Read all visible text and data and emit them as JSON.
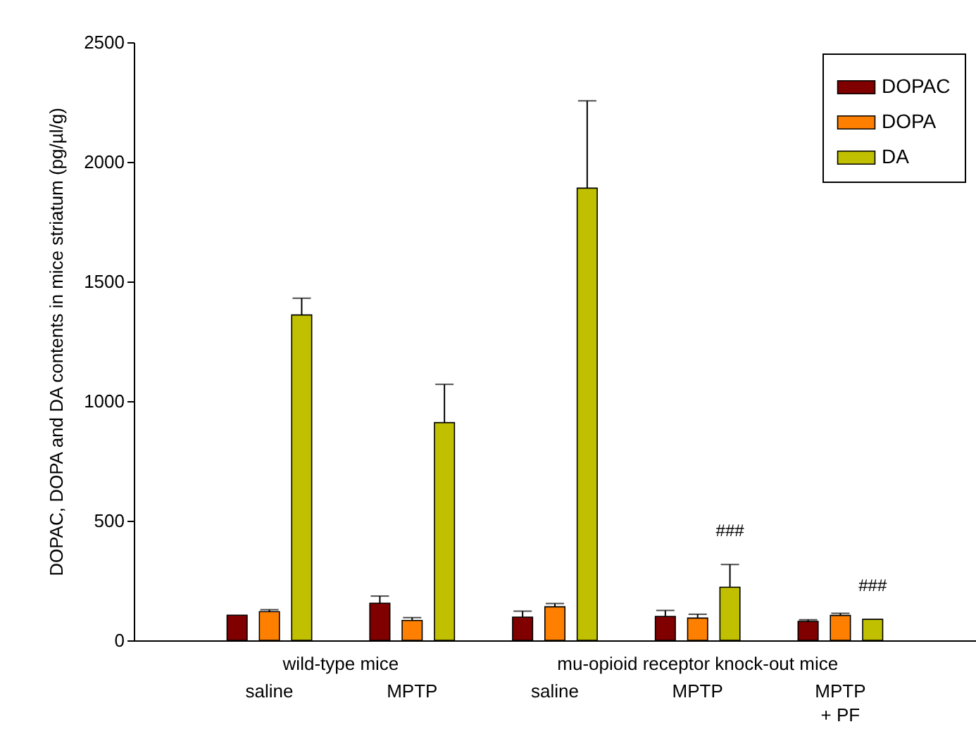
{
  "chart_data": {
    "type": "bar",
    "ylabel": "DOPAC, DOPA and DA contents in mice striatum (pg/µl/g)",
    "categories": [
      "saline",
      "MPTP",
      "saline",
      "MPTP",
      "MPTP\n+ PF"
    ],
    "series": [
      {
        "name": "DOPAC",
        "color": "#800000",
        "values": [
          105,
          155,
          97,
          100,
          79
        ],
        "errors": [
          null,
          30,
          25,
          25,
          7
        ]
      },
      {
        "name": "DOPA",
        "color": "#ff8000",
        "values": [
          120,
          83,
          140,
          93,
          104
        ],
        "errors": [
          8,
          12,
          14,
          16,
          9
        ]
      },
      {
        "name": "DA",
        "color": "#c0c000",
        "values": [
          1360,
          910,
          1890,
          222,
          88
        ],
        "errors": [
          70,
          160,
          365,
          95,
          null
        ]
      }
    ],
    "ylim": [
      0,
      2500
    ],
    "yticks": [
      0,
      500,
      1000,
      1500,
      2000,
      2500
    ],
    "legend": "top right",
    "annotations": [
      "wild-type mice",
      "mu-opioid receptor knock-out mice",
      "###",
      "###"
    ]
  }
}
